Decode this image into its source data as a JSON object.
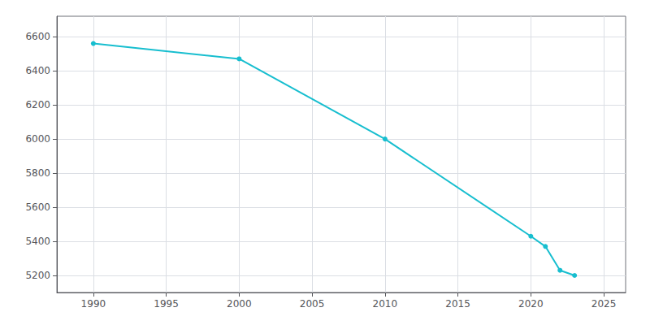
{
  "chart_data": {
    "type": "line",
    "x": [
      1990,
      2000,
      2010,
      2020,
      2021,
      2022,
      2023
    ],
    "values": [
      6560,
      6470,
      6000,
      5430,
      5370,
      5230,
      5200
    ],
    "color": "#17BECF",
    "marker": "circle",
    "xlim": [
      1987.5,
      2026.5
    ],
    "ylim": [
      5100,
      6720
    ],
    "xticks": [
      1990,
      1995,
      2000,
      2005,
      2010,
      2015,
      2020,
      2025
    ],
    "yticks": [
      5200,
      5400,
      5600,
      5800,
      6000,
      6200,
      6400,
      6600
    ],
    "grid": true
  }
}
